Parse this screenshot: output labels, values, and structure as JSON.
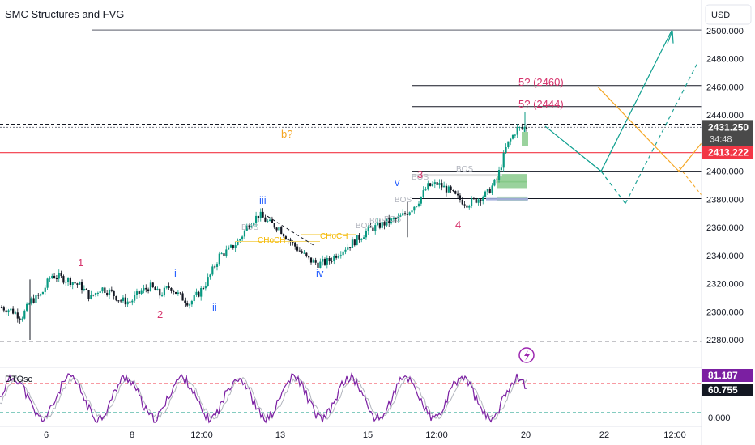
{
  "title": "SMC Structures and FVG",
  "currency": "USD",
  "chart_data": {
    "type": "candlestick",
    "price_axis": {
      "ticks": [
        "2500.000",
        "2480.000",
        "2460.000",
        "2440.000",
        "2420.000",
        "2400.000",
        "2380.000",
        "2360.000",
        "2340.000",
        "2320.000",
        "2300.000",
        "2280.000"
      ],
      "range": [
        2270,
        2510
      ]
    },
    "time_axis": {
      "ticks": [
        "6",
        "8",
        "12:00",
        "13",
        "15",
        "12:00",
        "20",
        "22",
        "12:00"
      ]
    },
    "current_price": {
      "label": "2431.250",
      "countdown": "34:48",
      "value": 2431.25
    },
    "red_line": {
      "label": "2413.222",
      "value": 2413.222
    },
    "price_path": [
      2303,
      2301,
      2296,
      2308,
      2312,
      2326,
      2324,
      2322,
      2318,
      2310,
      2317,
      2314,
      2308,
      2307,
      2314,
      2318,
      2312,
      2318,
      2311,
      2306,
      2314,
      2325,
      2340,
      2344,
      2351,
      2363,
      2369,
      2363,
      2360,
      2351,
      2344,
      2337,
      2334,
      2336,
      2342,
      2347,
      2352,
      2358,
      2361,
      2364,
      2366,
      2371,
      2378,
      2389,
      2391,
      2387,
      2381,
      2377,
      2380,
      2384,
      2394,
      2418,
      2430,
      2431
    ],
    "levels": [
      2500.5,
      2461,
      2446,
      2433.5,
      2400,
      2380.5,
      2279
    ],
    "waves": [
      {
        "label": "1",
        "price": 2334
      },
      {
        "label": "2",
        "price": 2298
      },
      {
        "label": "i",
        "price": 2327
      },
      {
        "label": "ii",
        "price": 2303
      },
      {
        "label": "iii",
        "price": 2383
      },
      {
        "label": "iv",
        "price": 2325
      },
      {
        "label": "v",
        "price": 2399
      },
      {
        "label": "3",
        "price": 2396
      },
      {
        "label": "4",
        "price": 2368
      },
      {
        "label": "b?",
        "price": 2425
      }
    ],
    "projections": [
      "5? (2460)",
      "5? (2444)"
    ],
    "structure_labels": [
      "BOS",
      "BOS",
      "BOS",
      "BOS",
      "BOS",
      "BOS",
      "CHoCH",
      "CHoCH"
    ],
    "fvg_zones": [
      [
        2392,
        2398
      ],
      [
        2388,
        2393
      ],
      [
        2379,
        2382
      ]
    ],
    "paths": {
      "teal_solid": [
        2432,
        2400,
        2500
      ],
      "green_dashed": [
        2377,
        2476
      ],
      "orange": [
        2460,
        2400,
        2420
      ]
    }
  },
  "oscillator": {
    "name": "DTOsc",
    "values": [
      "81.187",
      "60.755",
      "0.000"
    ],
    "upper": 80,
    "lower": 20
  },
  "colors": {
    "teal": "#0e9f8f",
    "orange": "#f5a623",
    "red": "#f23645",
    "pink": "#d6336c",
    "blue": "#2962ff",
    "purple": "#9c27b0",
    "grey": "#b2b5be"
  },
  "icons": {
    "lightning": "lightning-icon"
  }
}
